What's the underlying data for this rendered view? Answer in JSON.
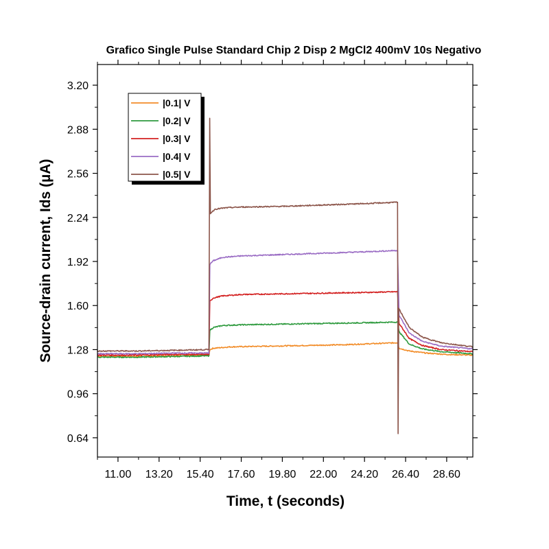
{
  "chart_data": {
    "type": "line",
    "title": "Grafico Single Pulse Standard Chip 2 Disp 2 MgCl2 400mV 10s Negativo",
    "xlabel": "Time, t (seconds)",
    "ylabel": "Source-drain current, Ids (µA)",
    "xlim": [
      9.9,
      30.0
    ],
    "ylim": [
      0.5,
      3.35
    ],
    "x_ticks": [
      11.0,
      13.2,
      15.4,
      17.6,
      19.8,
      22.0,
      24.2,
      26.4,
      28.6
    ],
    "x_tick_labels": [
      "11.00",
      "13.20",
      "15.40",
      "17.60",
      "19.80",
      "22.00",
      "24.20",
      "26.40",
      "28.60"
    ],
    "y_ticks": [
      0.64,
      0.96,
      1.28,
      1.6,
      1.92,
      2.24,
      2.56,
      2.88,
      3.2
    ],
    "y_tick_labels": [
      "0.64",
      "0.96",
      "1.28",
      "1.60",
      "1.92",
      "2.24",
      "2.56",
      "2.88",
      "3.20"
    ],
    "grid": false,
    "legend_position": "top-left",
    "series": [
      {
        "name": "|0.1| V",
        "color": "#f28c28",
        "points": [
          [
            9.9,
            1.23
          ],
          [
            12.0,
            1.23
          ],
          [
            14.0,
            1.235
          ],
          [
            15.87,
            1.24
          ],
          [
            15.92,
            1.28
          ],
          [
            16.1,
            1.29
          ],
          [
            17.0,
            1.3
          ],
          [
            19.0,
            1.305
          ],
          [
            21.0,
            1.31
          ],
          [
            23.0,
            1.315
          ],
          [
            25.0,
            1.325
          ],
          [
            25.97,
            1.33
          ],
          [
            26.05,
            1.29
          ],
          [
            26.6,
            1.27
          ],
          [
            27.5,
            1.255
          ],
          [
            28.6,
            1.245
          ],
          [
            30.0,
            1.24
          ]
        ]
      },
      {
        "name": "|0.2| V",
        "color": "#2e9a3e",
        "points": [
          [
            9.9,
            1.225
          ],
          [
            12.0,
            1.225
          ],
          [
            14.0,
            1.23
          ],
          [
            15.87,
            1.235
          ],
          [
            15.92,
            1.42
          ],
          [
            16.1,
            1.44
          ],
          [
            16.6,
            1.455
          ],
          [
            17.6,
            1.46
          ],
          [
            19.8,
            1.465
          ],
          [
            22.0,
            1.47
          ],
          [
            24.2,
            1.475
          ],
          [
            25.97,
            1.48
          ],
          [
            26.05,
            1.41
          ],
          [
            26.6,
            1.32
          ],
          [
            27.3,
            1.285
          ],
          [
            28.3,
            1.265
          ],
          [
            30.0,
            1.25
          ]
        ]
      },
      {
        "name": "|0.3| V",
        "color": "#d32020",
        "points": [
          [
            9.9,
            1.24
          ],
          [
            12.0,
            1.24
          ],
          [
            14.0,
            1.245
          ],
          [
            15.87,
            1.245
          ],
          [
            15.92,
            1.63
          ],
          [
            16.1,
            1.655
          ],
          [
            16.6,
            1.67
          ],
          [
            17.6,
            1.68
          ],
          [
            19.8,
            1.685
          ],
          [
            22.0,
            1.69
          ],
          [
            24.2,
            1.695
          ],
          [
            25.97,
            1.7
          ],
          [
            26.05,
            1.47
          ],
          [
            26.6,
            1.36
          ],
          [
            27.3,
            1.31
          ],
          [
            28.3,
            1.28
          ],
          [
            30.0,
            1.265
          ]
        ]
      },
      {
        "name": "|0.4| V",
        "color": "#9a6cc4",
        "points": [
          [
            9.9,
            1.25
          ],
          [
            12.0,
            1.25
          ],
          [
            14.0,
            1.255
          ],
          [
            15.87,
            1.255
          ],
          [
            15.92,
            1.9
          ],
          [
            16.1,
            1.925
          ],
          [
            16.6,
            1.95
          ],
          [
            17.6,
            1.96
          ],
          [
            19.8,
            1.97
          ],
          [
            22.0,
            1.98
          ],
          [
            24.2,
            1.99
          ],
          [
            25.97,
            2.0
          ],
          [
            26.05,
            1.53
          ],
          [
            26.6,
            1.4
          ],
          [
            27.3,
            1.34
          ],
          [
            28.3,
            1.305
          ],
          [
            30.0,
            1.285
          ]
        ]
      },
      {
        "name": "|0.5| V",
        "color": "#8b5449",
        "points": [
          [
            9.9,
            1.27
          ],
          [
            12.0,
            1.27
          ],
          [
            14.0,
            1.275
          ],
          [
            15.87,
            1.28
          ],
          [
            15.91,
            2.96
          ],
          [
            15.95,
            2.27
          ],
          [
            16.2,
            2.3
          ],
          [
            16.8,
            2.31
          ],
          [
            17.6,
            2.315
          ],
          [
            19.8,
            2.32
          ],
          [
            22.0,
            2.33
          ],
          [
            24.2,
            2.34
          ],
          [
            25.97,
            2.35
          ],
          [
            26.0,
            0.67
          ],
          [
            26.03,
            1.58
          ],
          [
            26.6,
            1.44
          ],
          [
            27.3,
            1.37
          ],
          [
            28.3,
            1.33
          ],
          [
            30.0,
            1.3
          ]
        ]
      }
    ]
  }
}
